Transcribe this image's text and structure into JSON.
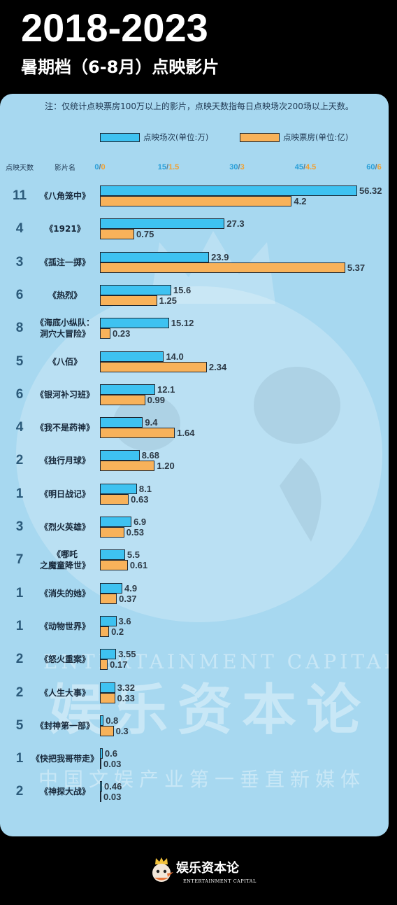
{
  "title": "2018-2023",
  "subtitle": "暑期档（6-8月）点映影片",
  "note": "注：仅统计点映票房100万以上的影片，点映天数指每日点映场次200场以上天数。",
  "colors": {
    "background": "#000000",
    "panel": "#a7d8f0",
    "screenings_bar": "#3ec2f1",
    "boxoffice_bar": "#f8b25a",
    "bar_border": "#1b2733",
    "screenings_tick": "#2a9fd8",
    "boxoffice_tick": "#f0a032",
    "days_text": "#2c5b7b",
    "text_dark": "#17283a"
  },
  "watermark": {
    "icon": "mascot-watermark-icon",
    "en": "ENTERTAINMENT CAPITAL",
    "cn": "娱乐资本论",
    "slogan": "中国文娱产业第一垂直新媒体"
  },
  "footer": {
    "icon": "mascot-logo-icon",
    "logo_cn": "娱乐资本论",
    "logo_en": "ENTERTAINMENT CAPITAL"
  },
  "chart_data": {
    "type": "bar",
    "orientation": "horizontal",
    "grid": false,
    "legend_position": "top",
    "column_headers": {
      "days": "点映天数",
      "film": "影片名"
    },
    "tick_separator": "/",
    "x_ticks": [
      {
        "screenings": "0",
        "boxoffice": "0"
      },
      {
        "screenings": "15",
        "boxoffice": "1.5"
      },
      {
        "screenings": "30",
        "boxoffice": "3"
      },
      {
        "screenings": "45",
        "boxoffice": "4.5"
      },
      {
        "screenings": "60",
        "boxoffice": "6"
      }
    ],
    "xlim": {
      "screenings": [
        0,
        60
      ],
      "boxoffice": [
        0,
        6
      ]
    },
    "categories": [
      "《八角笼中》",
      "《1921》",
      "《孤注一掷》",
      "《热烈》",
      "《海底小纵队：\n洞穴大冒险》",
      "《八佰》",
      "《银河补习班》",
      "《我不是药神》",
      "《独行月球》",
      "《明日战记》",
      "《烈火英雄》",
      "《哪吒\n之魔童降世》",
      "《消失的她》",
      "《动物世界》",
      "《怒火重案》",
      "《人生大事》",
      "《封神第一部》",
      "《快把我哥带走》",
      "《神探大战》"
    ],
    "days": [
      11,
      4,
      3,
      6,
      8,
      5,
      6,
      4,
      2,
      1,
      3,
      7,
      1,
      1,
      2,
      2,
      5,
      1,
      2
    ],
    "series": [
      {
        "name": "点映场次(单位:万)",
        "values": [
          56.32,
          27.3,
          23.9,
          15.6,
          15.12,
          14.0,
          12.1,
          9.4,
          8.68,
          8.1,
          6.9,
          5.5,
          4.9,
          3.6,
          3.55,
          3.32,
          0.8,
          0.6,
          0.46
        ],
        "labels": [
          "56.32",
          "27.3",
          "23.9",
          "15.6",
          "15.12",
          "14.0",
          "12.1",
          "9.4",
          "8.68",
          "8.1",
          "6.9",
          "5.5",
          "4.9",
          "3.6",
          "3.55",
          "3.32",
          "0.8",
          "0.6",
          "0.46"
        ]
      },
      {
        "name": "点映票房(单位:亿)",
        "values": [
          4.2,
          0.75,
          5.37,
          1.25,
          0.23,
          2.34,
          0.99,
          1.64,
          1.2,
          0.63,
          0.53,
          0.61,
          0.37,
          0.2,
          0.17,
          0.33,
          0.3,
          0.03,
          0.03
        ],
        "labels": [
          "4.2",
          "0.75",
          "5.37",
          "1.25",
          "0.23",
          "2.34",
          "0.99",
          "1.64",
          "1.20",
          "0.63",
          "0.53",
          "0.61",
          "0.37",
          "0.2",
          "0.17",
          "0.33",
          "0.3",
          "0.03",
          "0.03"
        ]
      }
    ]
  }
}
